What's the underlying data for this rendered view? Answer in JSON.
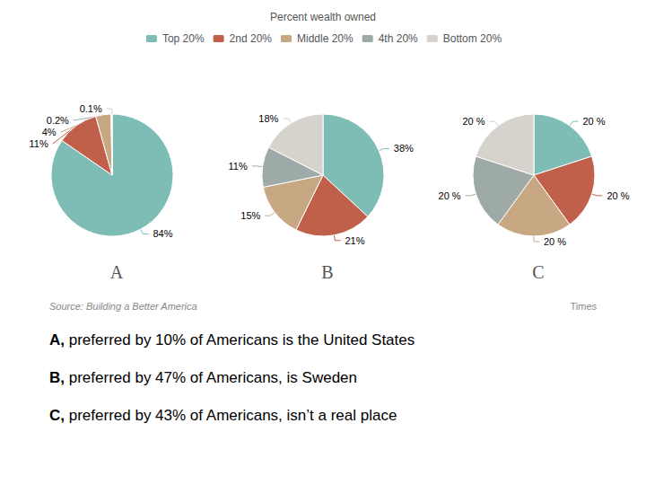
{
  "chart_data": {
    "type": "pie",
    "categories": [
      "Top 20%",
      "2nd 20%",
      "Middle 20%",
      "4th 20%",
      "Bottom 20%"
    ],
    "colors": [
      "#7dbdb5",
      "#c0604a",
      "#c8a882",
      "#9eaaa8",
      "#d6d2cc"
    ],
    "legend": "top",
    "data_labels": true,
    "series": [
      {
        "name": "A",
        "values": [
          84,
          11,
          4,
          0.2,
          0.1
        ],
        "value_labels": [
          "84%",
          "11%",
          "4%",
          "0.2%",
          "0.1%"
        ]
      },
      {
        "name": "B",
        "values": [
          38,
          21,
          15,
          11,
          18
        ],
        "value_labels": [
          "38%",
          "21%",
          "15%",
          "11%",
          "18%"
        ]
      },
      {
        "name": "C",
        "values": [
          20,
          20,
          20,
          20,
          20
        ],
        "value_labels": [
          "20 %",
          "20 %",
          "20 %",
          "20 %",
          "20 %"
        ]
      }
    ],
    "annotations": [
      {
        "text": "Percent wealth owned"
      },
      {
        "text": "Source: Building a Better America"
      },
      {
        "text": "Times"
      },
      {
        "bold": "A,",
        "text": " preferred by 10% of Americans is the United States"
      },
      {
        "bold": "B,",
        "text": " preferred by 47% of Americans, is Sweden"
      },
      {
        "bold": "C,",
        "text": " preferred by 43% of Americans, isn’t a real place"
      }
    ]
  }
}
